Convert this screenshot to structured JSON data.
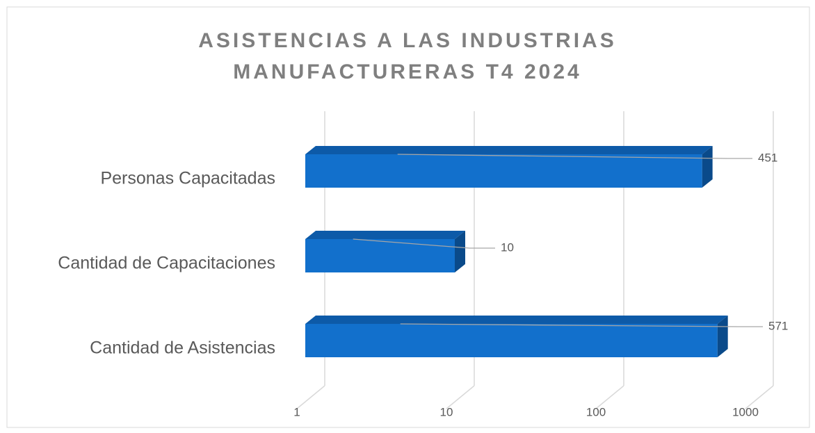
{
  "chart_data": {
    "type": "bar",
    "orientation": "horizontal",
    "title": "ASISTENCIAS A LAS INDUSTRIAS MANUFACTURERAS T4 2024",
    "categories": [
      "Personas Capacitadas",
      "Cantidad de Capacitaciones",
      "Cantidad de Asistencias"
    ],
    "values": [
      451,
      10,
      571
    ],
    "color": "#1270cc",
    "xlim": [
      1,
      1000
    ],
    "xticks": [
      1,
      10,
      100,
      1000
    ],
    "log_scale": true,
    "grid": true
  }
}
